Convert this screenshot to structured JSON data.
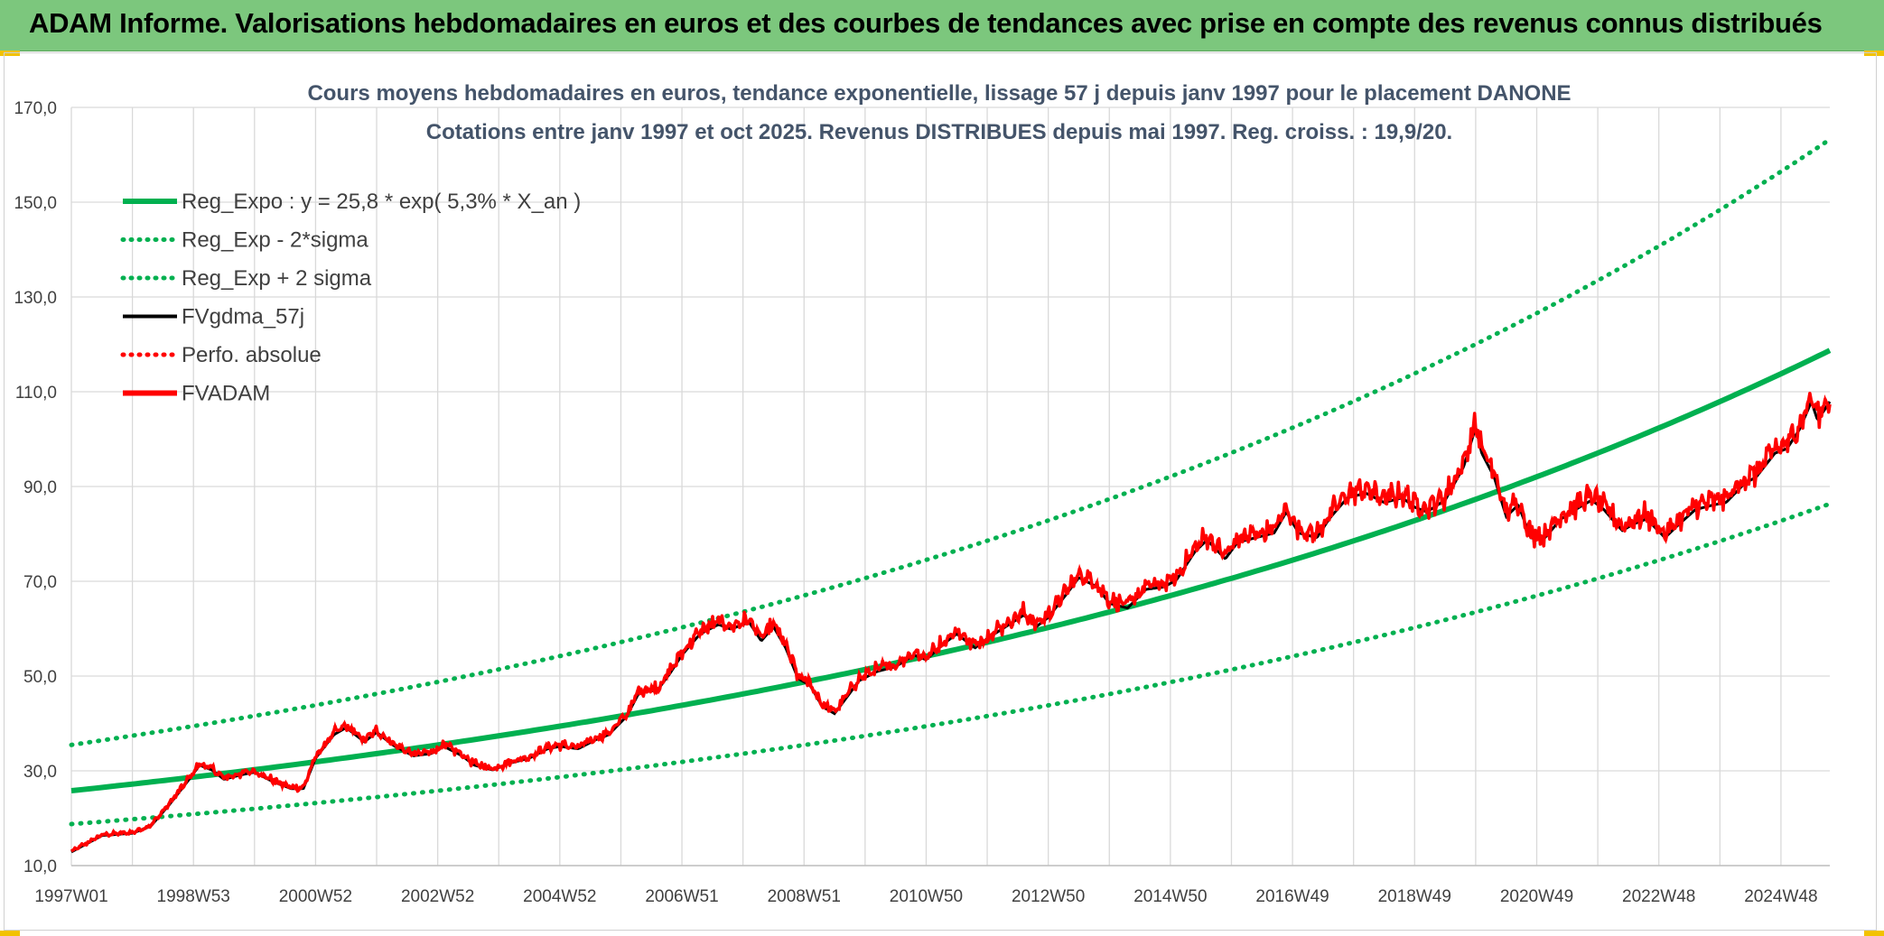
{
  "header": {
    "title": "ADAM Informe. Valorisations hebdomadaires en euros et des courbes de tendances avec prise en compte des revenus connus distribués",
    "background": "#7cc77d",
    "accent": "#f2c200"
  },
  "chart_data": {
    "type": "line",
    "title": "Cours moyens hebdomadaires en euros, tendance exponentielle, lissage 57 j depuis janv 1997 pour le placement DANONE",
    "subtitle": "Cotations entre janv 1997 et oct 2025. Revenus DISTRIBUES depuis mai 1997. Reg. croiss. : 19,9/20.",
    "xlabel": "",
    "ylabel": "",
    "x_range": [
      1997.0,
      2025.8
    ],
    "ylim": [
      10,
      170
    ],
    "y_ticks": [
      "170,0",
      "150,0",
      "130,0",
      "110,0",
      "90,0",
      "70,0",
      "50,0",
      "30,0",
      "10,0"
    ],
    "x_ticks": [
      {
        "label": "1997W01",
        "x": 1997.0
      },
      {
        "label": "1998W53",
        "x": 1999.0
      },
      {
        "label": "2000W52",
        "x": 2001.0
      },
      {
        "label": "2002W52",
        "x": 2003.0
      },
      {
        "label": "2004W52",
        "x": 2005.0
      },
      {
        "label": "2006W51",
        "x": 2007.0
      },
      {
        "label": "2008W51",
        "x": 2009.0
      },
      {
        "label": "2010W50",
        "x": 2011.0
      },
      {
        "label": "2012W50",
        "x": 2013.0
      },
      {
        "label": "2014W50",
        "x": 2015.0
      },
      {
        "label": "2016W49",
        "x": 2017.0
      },
      {
        "label": "2018W49",
        "x": 2019.0
      },
      {
        "label": "2020W49",
        "x": 2021.0
      },
      {
        "label": "2022W48",
        "x": 2023.0
      },
      {
        "label": "2024W48",
        "x": 2025.0
      }
    ],
    "grid": true,
    "legend_position": "top-left",
    "regression": {
      "a": 25.8,
      "rate": 0.053,
      "sigma_factor": 1.375
    },
    "series": [
      {
        "name": "Reg_Expo : y = 25,8 * exp( 5,3% *  X_an )",
        "color": "#00b050",
        "style": "solid"
      },
      {
        "name": "Reg_Exp - 2*sigma",
        "color": "#00b050",
        "style": "dotted"
      },
      {
        "name": "Reg_Exp + 2 sigma",
        "color": "#00b050",
        "style": "dotted"
      },
      {
        "name": "FVgdma_57j",
        "color": "#000000",
        "style": "solid"
      },
      {
        "name": "Perfo. absolue",
        "color": "#ff0000",
        "style": "dotted"
      },
      {
        "name": "FVADAM",
        "color": "#ff0000",
        "style": "solid",
        "points": [
          [
            1997.0,
            13.0
          ],
          [
            1997.5,
            16.5
          ],
          [
            1998.0,
            17.0
          ],
          [
            1998.3,
            18.5
          ],
          [
            1998.6,
            23.0
          ],
          [
            1998.9,
            28.0
          ],
          [
            1999.1,
            31.5
          ],
          [
            1999.3,
            30.5
          ],
          [
            1999.5,
            28.5
          ],
          [
            1999.8,
            29.5
          ],
          [
            2000.0,
            30.0
          ],
          [
            2000.3,
            28.0
          ],
          [
            2000.6,
            26.5
          ],
          [
            2000.8,
            26.5
          ],
          [
            2001.0,
            33.0
          ],
          [
            2001.3,
            38.0
          ],
          [
            2001.5,
            39.5
          ],
          [
            2001.8,
            36.5
          ],
          [
            2002.0,
            38.5
          ],
          [
            2002.3,
            35.5
          ],
          [
            2002.6,
            33.5
          ],
          [
            2002.9,
            34.0
          ],
          [
            2003.1,
            35.5
          ],
          [
            2003.4,
            33.5
          ],
          [
            2003.6,
            31.5
          ],
          [
            2003.9,
            30.5
          ],
          [
            2004.2,
            32.0
          ],
          [
            2004.5,
            33.0
          ],
          [
            2004.8,
            35.0
          ],
          [
            2005.0,
            35.5
          ],
          [
            2005.3,
            35.0
          ],
          [
            2005.6,
            37.0
          ],
          [
            2005.8,
            38.0
          ],
          [
            2006.1,
            42.0
          ],
          [
            2006.3,
            47.0
          ],
          [
            2006.6,
            47.5
          ],
          [
            2006.8,
            51.0
          ],
          [
            2007.0,
            55.0
          ],
          [
            2007.3,
            59.5
          ],
          [
            2007.6,
            61.5
          ],
          [
            2007.8,
            60.5
          ],
          [
            2008.1,
            62.0
          ],
          [
            2008.3,
            58.0
          ],
          [
            2008.5,
            61.0
          ],
          [
            2008.7,
            56.5
          ],
          [
            2008.9,
            50.0
          ],
          [
            2009.1,
            48.5
          ],
          [
            2009.3,
            44.0
          ],
          [
            2009.5,
            42.5
          ],
          [
            2009.7,
            46.0
          ],
          [
            2009.9,
            49.5
          ],
          [
            2010.2,
            51.5
          ],
          [
            2010.5,
            52.5
          ],
          [
            2010.8,
            55.0
          ],
          [
            2011.0,
            54.0
          ],
          [
            2011.3,
            57.5
          ],
          [
            2011.5,
            59.5
          ],
          [
            2011.8,
            56.5
          ],
          [
            2012.0,
            58.5
          ],
          [
            2012.3,
            61.0
          ],
          [
            2012.6,
            63.5
          ],
          [
            2012.8,
            61.0
          ],
          [
            2013.0,
            63.0
          ],
          [
            2013.3,
            68.0
          ],
          [
            2013.5,
            71.5
          ],
          [
            2013.8,
            69.5
          ],
          [
            2014.0,
            66.0
          ],
          [
            2014.3,
            65.0
          ],
          [
            2014.6,
            69.0
          ],
          [
            2014.9,
            69.5
          ],
          [
            2015.1,
            71.0
          ],
          [
            2015.4,
            77.0
          ],
          [
            2015.6,
            79.5
          ],
          [
            2015.9,
            75.5
          ],
          [
            2016.1,
            79.0
          ],
          [
            2016.4,
            80.0
          ],
          [
            2016.7,
            81.0
          ],
          [
            2016.9,
            85.5
          ],
          [
            2017.1,
            81.0
          ],
          [
            2017.4,
            80.0
          ],
          [
            2017.6,
            84.0
          ],
          [
            2017.9,
            88.5
          ],
          [
            2018.2,
            89.5
          ],
          [
            2018.5,
            87.5
          ],
          [
            2018.8,
            88.5
          ],
          [
            2019.0,
            86.5
          ],
          [
            2019.2,
            85.5
          ],
          [
            2019.5,
            88.0
          ],
          [
            2019.8,
            95.0
          ],
          [
            2020.0,
            103.5
          ],
          [
            2020.1,
            98.0
          ],
          [
            2020.3,
            93.0
          ],
          [
            2020.5,
            84.5
          ],
          [
            2020.7,
            87.0
          ],
          [
            2020.9,
            80.0
          ],
          [
            2021.1,
            79.5
          ],
          [
            2021.4,
            84.0
          ],
          [
            2021.7,
            86.5
          ],
          [
            2021.9,
            88.0
          ],
          [
            2022.1,
            86.0
          ],
          [
            2022.4,
            81.5
          ],
          [
            2022.6,
            83.0
          ],
          [
            2022.8,
            84.0
          ],
          [
            2023.1,
            80.0
          ],
          [
            2023.3,
            82.5
          ],
          [
            2023.6,
            86.0
          ],
          [
            2023.9,
            87.0
          ],
          [
            2024.1,
            87.5
          ],
          [
            2024.4,
            91.5
          ],
          [
            2024.6,
            93.0
          ],
          [
            2024.9,
            98.0
          ],
          [
            2025.1,
            99.0
          ],
          [
            2025.3,
            103.0
          ],
          [
            2025.5,
            109.0
          ],
          [
            2025.6,
            105.0
          ],
          [
            2025.8,
            109.0
          ]
        ]
      }
    ]
  }
}
